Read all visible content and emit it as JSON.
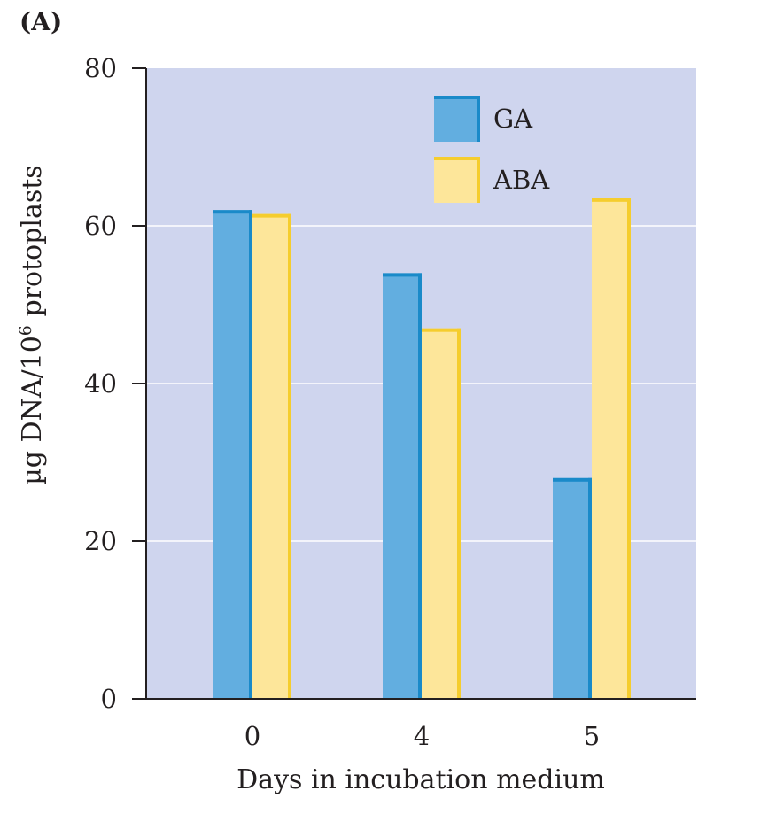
{
  "panel_label": "(A)",
  "chart_data": {
    "type": "bar",
    "categories": [
      "0",
      "4",
      "5"
    ],
    "series": [
      {
        "name": "GA",
        "values": [
          62,
          54,
          28
        ],
        "color": "#62aee0",
        "edge_color": "#1a8ac9"
      },
      {
        "name": "ABA",
        "values": [
          61.5,
          47,
          63.5
        ],
        "color": "#fde69a",
        "edge_color": "#f5cd2e"
      }
    ],
    "xlabel": "Days in incubation medium",
    "ylabel_main": "µg DNA/10",
    "ylabel_sup": "6",
    "ylabel_tail": " protoplasts",
    "ylim": [
      0,
      80
    ],
    "yticks": [
      0,
      20,
      40,
      60,
      80
    ],
    "grid": true,
    "legend_position": "top-right",
    "plot_background": "#cfd5ee"
  }
}
